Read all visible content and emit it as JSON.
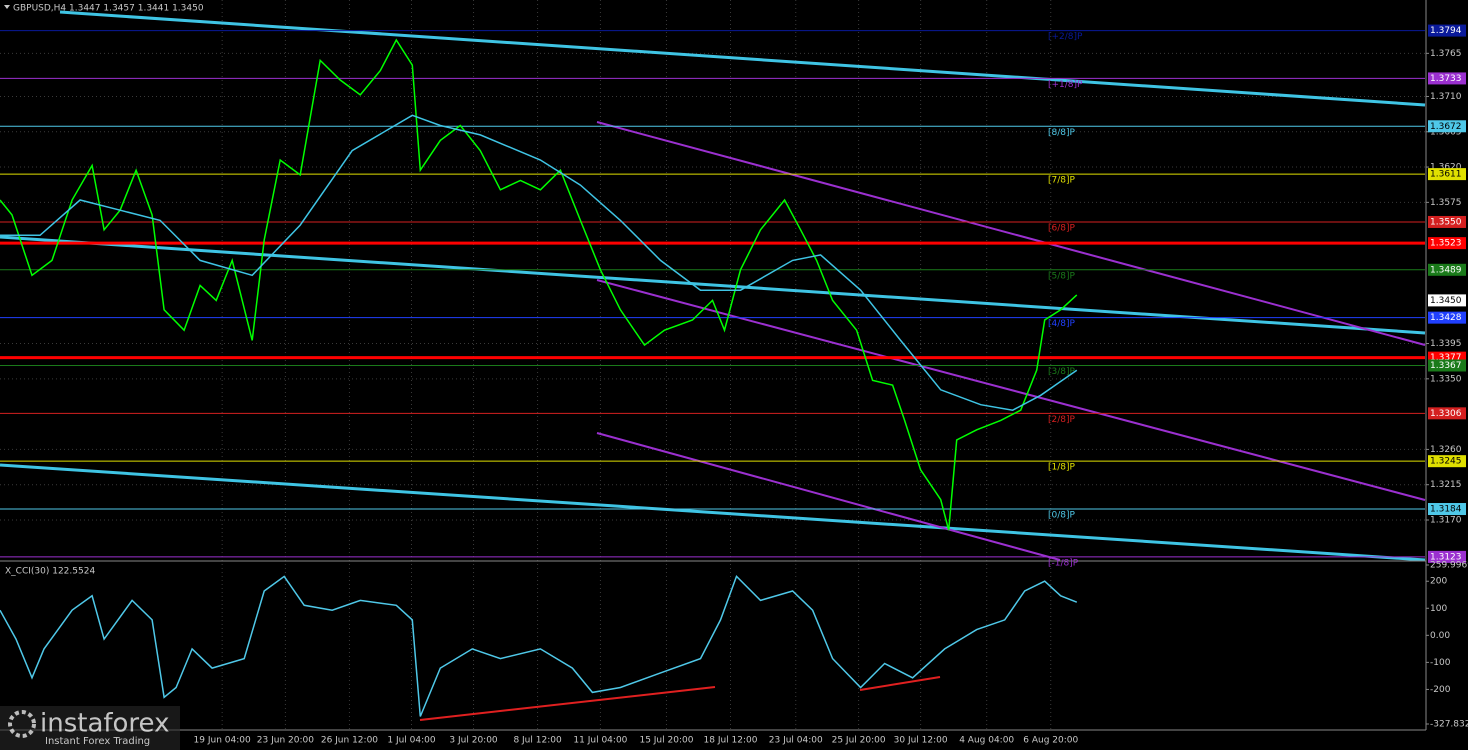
{
  "chart_data": [
    {
      "type": "line",
      "title": "GBPUSD,H4  1.3447 1.3457 1.3441 1.3450",
      "xlim": [
        0,
        356
      ],
      "ylim": [
        1.3119,
        1.3833
      ],
      "yticks": [
        1.3765,
        {
          "value": 1.371,
          "label": "1.3710"
        },
        1.3665,
        {
          "value": 1.362,
          "label": "1.3620"
        },
        1.3575,
        1.3395,
        {
          "value": 1.335,
          "label": "1.3350"
        },
        {
          "value": 1.326,
          "label": "1.3260"
        },
        1.3215,
        {
          "value": 1.317,
          "label": "1.3170"
        }
      ],
      "grid": true,
      "series": [
        {
          "color": "#00ff00",
          "x": [
            0,
            3,
            8,
            13,
            18,
            23,
            26,
            30,
            34,
            38,
            41,
            46,
            50,
            54,
            58,
            63,
            66,
            70,
            75,
            80,
            85,
            90,
            95,
            99,
            103,
            105,
            110,
            115,
            120,
            125,
            130,
            135,
            140,
            145,
            150,
            155,
            161,
            166,
            173,
            178,
            181,
            185,
            190,
            196,
            200,
            204,
            208,
            214,
            218,
            223,
            226,
            230,
            235,
            237,
            239,
            244,
            250,
            255,
            259,
            261,
            265,
            269
          ],
          "values": [
            1.3578,
            1.3559,
            1.3482,
            1.3501,
            1.3578,
            1.3622,
            1.354,
            1.3565,
            1.3616,
            1.3559,
            1.3438,
            1.3412,
            1.3469,
            1.345,
            1.3501,
            1.3399,
            1.3527,
            1.3629,
            1.361,
            1.3756,
            1.3731,
            1.3712,
            1.3743,
            1.3782,
            1.375,
            1.3616,
            1.3654,
            1.3673,
            1.3641,
            1.3591,
            1.3603,
            1.3591,
            1.3616,
            1.3552,
            1.3489,
            1.3438,
            1.3393,
            1.3412,
            1.3425,
            1.345,
            1.3412,
            1.3489,
            1.354,
            1.3578,
            1.354,
            1.3501,
            1.345,
            1.3412,
            1.3348,
            1.3342,
            1.3297,
            1.3234,
            1.3196,
            1.3157,
            1.3272,
            1.3285,
            1.3297,
            1.331,
            1.3361,
            1.3425,
            1.3438,
            1.3457
          ]
        },
        {
          "color": "#3fc4e4",
          "x": [
            0,
            10,
            20,
            30,
            40,
            50,
            63,
            75,
            88,
            103,
            110,
            120,
            135,
            145,
            155,
            165,
            175,
            185,
            198,
            205,
            215,
            225,
            235,
            245,
            253,
            260,
            269
          ],
          "values": [
            1.3533,
            1.3533,
            1.3578,
            1.3565,
            1.3552,
            1.3501,
            1.3482,
            1.3546,
            1.3641,
            1.3686,
            1.3673,
            1.3661,
            1.3629,
            1.3597,
            1.3552,
            1.3501,
            1.3463,
            1.3463,
            1.3501,
            1.3508,
            1.3463,
            1.3399,
            1.3336,
            1.3317,
            1.331,
            1.3329,
            1.3361
          ]
        }
      ],
      "levels": [
        {
          "label": "[+2/8]P",
          "value": 1.3794,
          "color": "#0a1a9a"
        },
        {
          "label": "[+1/8]P",
          "value": 1.3733,
          "color": "#9b30d0"
        },
        {
          "label": "[8/8]P",
          "value": 1.3672,
          "color": "#4fc8e8"
        },
        {
          "label": "[7/8]P",
          "value": 1.3611,
          "color": "#e0e000"
        },
        {
          "label": "[6/8]P",
          "value": 1.355,
          "value_label": "1.3550",
          "color": "#d42020"
        },
        {
          "value": 1.3523,
          "color": "#ff0000",
          "thick": true
        },
        {
          "label": "[5/8]P",
          "value": 1.3489,
          "color": "#1a7a1a"
        },
        {
          "label": "[4/8]P",
          "value": 1.3428,
          "color": "#2040ff"
        },
        {
          "value": 1.3377,
          "color": "#ff0000",
          "thick": true
        },
        {
          "label": "[3/8]P",
          "value": 1.3367,
          "color": "#1a7a1a"
        },
        {
          "label": "[2/8]P",
          "value": 1.3306,
          "color": "#d42020"
        },
        {
          "label": "[1/8]P",
          "value": 1.3245,
          "color": "#e0e000"
        },
        {
          "label": "[0/8]P",
          "value": 1.3184,
          "color": "#4fc8e8"
        },
        {
          "label": "[-1/8]P",
          "value": 1.3123,
          "color": "#9b30d0"
        }
      ],
      "last_price": {
        "value": 1.345,
        "label": "1.3450"
      }
    },
    {
      "type": "line",
      "title": "X_CCI(30) 122.5524",
      "xlim": [
        0,
        356
      ],
      "ylim": [
        -327.8322,
        259.9969
      ],
      "yticks": [
        259.9969,
        200,
        100,
        {
          "value": 0,
          "label": "0.00"
        },
        -100,
        -200,
        -327.8322
      ],
      "xticks": [
        {
          "value": 55.5,
          "label": "19 Jun 04:00"
        },
        {
          "value": 71.3,
          "label": "23 Jun 20:00"
        },
        {
          "value": 87.3,
          "label": "26 Jun 12:00"
        },
        {
          "value": 102.8,
          "label": "1 Jul 04:00"
        },
        {
          "value": 118.3,
          "label": "3 Jul 20:00"
        },
        {
          "value": 134.3,
          "label": "8 Jul 12:00"
        },
        {
          "value": 150,
          "label": "11 Jul 04:00"
        },
        {
          "value": 166.5,
          "label": "15 Jul 20:00"
        },
        {
          "value": 182.5,
          "label": "18 Jul 12:00"
        },
        {
          "value": 198.8,
          "label": "23 Jul 04:00"
        },
        {
          "value": 214.5,
          "label": "25 Jul 20:00"
        },
        {
          "value": 230,
          "label": "30 Jul 12:00"
        },
        {
          "value": 246.5,
          "label": "4 Aug 04:00"
        },
        {
          "value": 262.5,
          "label": "6 Aug 20:00"
        }
      ],
      "series": [
        {
          "color": "#4fc8e8",
          "x": [
            0,
            4,
            8,
            11,
            18,
            23,
            26,
            33,
            38,
            41,
            44,
            48,
            53,
            61,
            66,
            71,
            76,
            83,
            90,
            99,
            103,
            105,
            110,
            118,
            125,
            135,
            143,
            148,
            155,
            165,
            175,
            180,
            184,
            190,
            198,
            203,
            208,
            215,
            221,
            228,
            236,
            244,
            251,
            256,
            261,
            265,
            269
          ],
          "values": [
            93,
            -14,
            -157,
            -50,
            93,
            146,
            -14,
            129,
            57,
            -229,
            -193,
            -50,
            -121,
            -86,
            164,
            218,
            111,
            93,
            129,
            111,
            57,
            -300,
            -121,
            -50,
            -86,
            -50,
            -121,
            -211,
            -193,
            -139,
            -86,
            57,
            218,
            129,
            164,
            93,
            -86,
            -193,
            -104,
            -157,
            -50,
            21,
            57,
            164,
            200,
            146,
            122.5524
          ]
        }
      ]
    }
  ],
  "watermark": {
    "brand": "instaforex",
    "tagline": "Instant Forex Trading"
  }
}
